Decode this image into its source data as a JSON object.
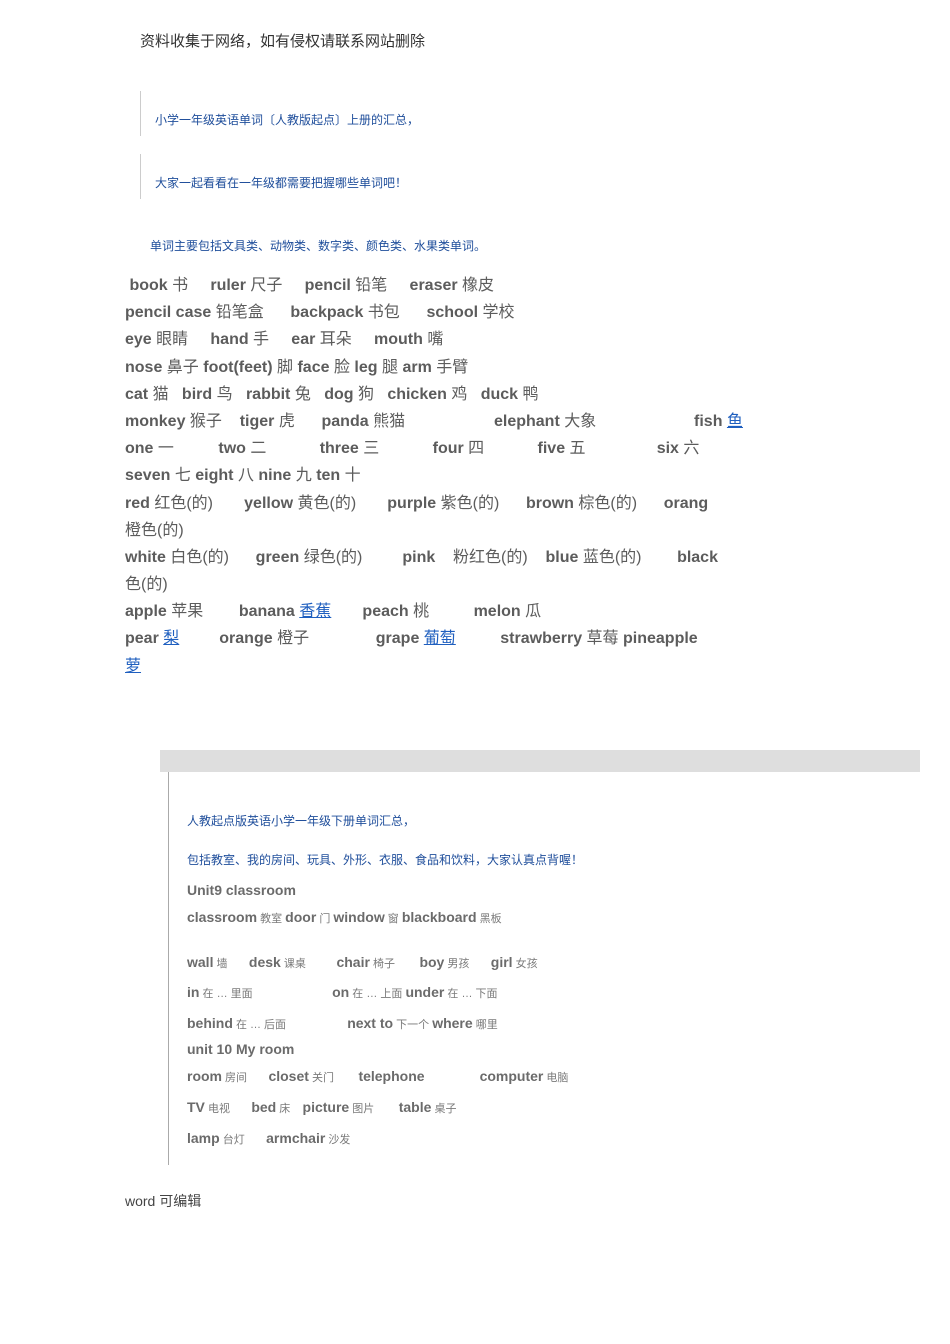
{
  "headerNote": "资料收集于网络，如有侵权请联系网站删除",
  "intro1": "小学一年级英语单词〔人教版起点〕上册的汇总，",
  "intro2": "大家一起看看在一年级都需要把握哪些单词吧！",
  "intro3": "单词主要包括文具类、动物类、数字类、颜色类、水果类单词。",
  "vocab1": {
    "l1": [
      [
        "book",
        "书"
      ],
      [
        "ruler",
        "尺子"
      ],
      [
        "pencil",
        "铅笔"
      ],
      [
        "eraser",
        "橡皮"
      ]
    ],
    "l2": [
      [
        "pencil case",
        "铅笔盒"
      ],
      [
        "backpack",
        "书包"
      ],
      [
        "school",
        "学校"
      ]
    ],
    "l3": [
      [
        "eye",
        "眼睛"
      ],
      [
        "hand",
        "手"
      ],
      [
        "ear",
        "耳朵"
      ],
      [
        "mouth",
        "嘴"
      ]
    ],
    "l4": [
      [
        "nose",
        "鼻子"
      ],
      [
        "foot(feet)",
        "脚"
      ],
      [
        "face",
        "脸"
      ],
      [
        "leg",
        "腿"
      ],
      [
        "arm",
        "手臂"
      ]
    ],
    "l5": [
      [
        "cat",
        "猫"
      ],
      [
        "bird",
        "鸟"
      ],
      [
        "rabbit",
        "兔"
      ],
      [
        "dog",
        "狗"
      ],
      [
        "chicken",
        "鸡"
      ],
      [
        "duck",
        "鸭"
      ]
    ],
    "l6": [
      [
        "monkey",
        "猴子"
      ],
      [
        "tiger",
        "虎"
      ],
      [
        "panda",
        "熊猫"
      ],
      [
        "elephant",
        "大象"
      ],
      [
        "fish",
        "鱼",
        "link"
      ]
    ],
    "l7": [
      [
        "one",
        "一"
      ],
      [
        "two",
        "二"
      ],
      [
        "three",
        "三"
      ],
      [
        "four",
        "四"
      ],
      [
        "five",
        "五"
      ],
      [
        "six",
        "六"
      ]
    ],
    "l8": [
      [
        "seven",
        "七"
      ],
      [
        "eight",
        "八"
      ],
      [
        "nine",
        "九"
      ],
      [
        "ten",
        "十"
      ]
    ],
    "l9": [
      [
        "red",
        "红色(的)"
      ],
      [
        "yellow",
        "黄色(的)"
      ],
      [
        "purple",
        "紫色(的)"
      ],
      [
        "brown",
        "棕色(的)"
      ],
      [
        "orang",
        "",
        "tail"
      ]
    ],
    "l9b": "橙色(的)",
    "l10": [
      [
        "white",
        "白色(的)"
      ],
      [
        "green",
        "绿色(的)"
      ],
      [
        "pink",
        "粉红色(的)"
      ],
      [
        "blue",
        "蓝色(的)"
      ],
      [
        "black",
        "",
        "tail"
      ]
    ],
    "l10b": "色(的)",
    "l11": [
      [
        "apple",
        "苹果"
      ],
      [
        "banana",
        "香蕉",
        "link"
      ],
      [
        "peach",
        "桃"
      ],
      [
        "melon",
        "瓜"
      ]
    ],
    "l12": [
      [
        "pear",
        "梨",
        "link"
      ],
      [
        "orange",
        "橙子"
      ],
      [
        "grape",
        "葡萄",
        "link"
      ],
      [
        "strawberry",
        "草莓"
      ],
      [
        "pineapple",
        "",
        "tail"
      ]
    ],
    "l12b": [
      "萝",
      "link"
    ]
  },
  "box": {
    "title1": "人教起点版英语小学一年级下册单词汇总，",
    "title2": "包括教室、我的房间、玩具、外形、衣服、食品和饮料，大家认真点背喔！",
    "unit9": "Unit9 classroom",
    "row1": [
      [
        "classroom",
        "教室"
      ],
      [
        "door",
        "门"
      ],
      [
        "window",
        "窗"
      ],
      [
        "blackboard",
        "黑板"
      ]
    ],
    "row2": [
      [
        "wall",
        "墙"
      ],
      [
        "desk",
        "课桌"
      ],
      [
        "chair",
        "椅子"
      ],
      [
        "boy",
        "男孩"
      ],
      [
        "girl",
        "女孩"
      ]
    ],
    "row3": [
      [
        "in",
        "在 … 里面"
      ],
      [
        "on",
        "在 … 上面"
      ],
      [
        "under",
        "在 … 下面"
      ]
    ],
    "row4": [
      [
        "behind",
        "在 … 后面"
      ],
      [
        "next to",
        "下一个"
      ],
      [
        "where",
        "哪里"
      ]
    ],
    "unit10": "unit 10 My room",
    "row5": [
      [
        "room",
        "房间"
      ],
      [
        "closet",
        "关门"
      ],
      [
        "telephone",
        ""
      ],
      [
        "computer",
        "电脑"
      ]
    ],
    "row6": [
      [
        "TV",
        "电视"
      ],
      [
        "bed",
        "床"
      ],
      [
        "picture",
        "图片"
      ],
      [
        "table",
        "桌子"
      ]
    ],
    "row7": [
      [
        "lamp",
        "台灯"
      ],
      [
        "armchair",
        "沙发"
      ]
    ]
  },
  "footer": "word 可编辑"
}
